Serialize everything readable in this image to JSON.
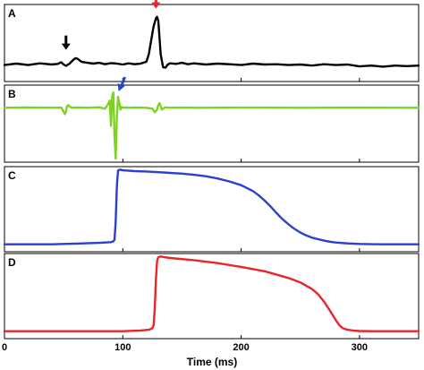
{
  "chart_data": {
    "type": "line",
    "x_axis": {
      "label": "Time (ms)",
      "range": [
        0,
        350
      ],
      "ticks": [
        0,
        100,
        200,
        300
      ],
      "tick_labels": [
        "0",
        "100",
        "200",
        "300"
      ]
    },
    "panels": [
      {
        "letter": "A",
        "color": "#000000",
        "y_range": [
          -0.6,
          2.2
        ],
        "series": {
          "x": [
            0,
            10,
            20,
            30,
            40,
            45,
            48,
            50,
            52,
            55,
            58,
            60,
            62,
            65,
            70,
            75,
            80,
            85,
            90,
            95,
            100,
            105,
            110,
            115,
            120,
            122,
            124,
            126,
            128,
            129,
            130,
            131,
            132,
            134,
            136,
            138,
            140,
            145,
            150,
            155,
            160,
            170,
            180,
            190,
            200,
            210,
            220,
            230,
            240,
            250,
            260,
            270,
            280,
            290,
            300,
            310,
            320,
            330,
            340,
            350
          ],
          "y": [
            0.0,
            0.05,
            0.0,
            0.06,
            0.02,
            0.04,
            0.1,
            0.02,
            -0.03,
            0.05,
            0.18,
            0.25,
            0.22,
            0.12,
            0.08,
            0.05,
            0.08,
            0.03,
            0.07,
            0.05,
            0.02,
            0.06,
            0.03,
            0.05,
            0.12,
            0.4,
            0.9,
            1.4,
            1.7,
            1.75,
            1.6,
            1.0,
            0.4,
            -0.08,
            -0.1,
            0.02,
            0.06,
            0.04,
            0.08,
            0.03,
            0.06,
            0.02,
            0.05,
            0.03,
            0.0,
            0.05,
            0.02,
            0.03,
            0.0,
            0.02,
            -0.02,
            0.03,
            0.0,
            0.02,
            -0.05,
            -0.02,
            -0.06,
            -0.02,
            -0.04,
            -0.02
          ]
        },
        "markers": [
          {
            "type": "arrow",
            "color": "#000000",
            "x": 52,
            "y": 0.55
          },
          {
            "type": "arrow",
            "color": "#e8262a",
            "x": 128,
            "y": 2.05
          }
        ]
      },
      {
        "letter": "B",
        "color": "#7dd321",
        "y_range": [
          -6,
          2.5
        ],
        "series": {
          "x": [
            0,
            20,
            40,
            48,
            50,
            51,
            52,
            53,
            54,
            55,
            56,
            58,
            60,
            70,
            80,
            85,
            88,
            89,
            90,
            91,
            92,
            93,
            94,
            95,
            96,
            97,
            98,
            99,
            100,
            102,
            105,
            110,
            120,
            125,
            127,
            129,
            130,
            131,
            132,
            133,
            134,
            136,
            140,
            150,
            160,
            200,
            250,
            300,
            350
          ],
          "y": [
            0.0,
            0.03,
            0.0,
            0.02,
            -0.4,
            -0.7,
            -0.4,
            0.2,
            0.3,
            0.15,
            0.05,
            0.0,
            0.03,
            0.0,
            0.05,
            -0.1,
            0.5,
            0.8,
            -2.0,
            1.3,
            1.7,
            -3.0,
            -5.6,
            -1.0,
            1.2,
            0.6,
            -0.2,
            0.1,
            0.0,
            0.03,
            0.0,
            0.02,
            0.0,
            -0.1,
            -0.5,
            -0.2,
            0.3,
            0.5,
            0.2,
            -0.2,
            -0.1,
            0.05,
            0.0,
            0.02,
            0.0,
            0.02,
            0.0,
            0.01,
            0.0
          ]
        },
        "markers": [
          {
            "type": "arrow",
            "color": "#2b45c9",
            "x": 98,
            "y": 2.0
          }
        ]
      },
      {
        "letter": "C",
        "color": "#2b3fd0",
        "y_range": [
          -0.1,
          1.05
        ],
        "series": {
          "x": [
            0,
            20,
            40,
            60,
            80,
            90,
            92,
            93,
            94,
            95,
            96,
            98,
            100,
            110,
            120,
            130,
            140,
            150,
            160,
            170,
            180,
            190,
            200,
            210,
            215,
            220,
            225,
            230,
            235,
            240,
            245,
            250,
            255,
            260,
            265,
            270,
            275,
            280,
            290,
            300,
            310,
            320,
            350
          ],
          "y": [
            0.0,
            0.0,
            0.0,
            0.01,
            0.02,
            0.03,
            0.04,
            0.06,
            0.3,
            0.8,
            1.0,
            1.01,
            1.0,
            0.99,
            0.985,
            0.975,
            0.965,
            0.955,
            0.94,
            0.92,
            0.89,
            0.85,
            0.8,
            0.72,
            0.66,
            0.59,
            0.51,
            0.42,
            0.34,
            0.27,
            0.21,
            0.16,
            0.12,
            0.09,
            0.07,
            0.05,
            0.035,
            0.025,
            0.012,
            0.005,
            0.002,
            0.0,
            0.0
          ]
        },
        "markers": []
      },
      {
        "letter": "D",
        "color": "#e8262a",
        "y_range": [
          -0.1,
          1.05
        ],
        "series": {
          "x": [
            0,
            40,
            80,
            100,
            115,
            122,
            125,
            126,
            127,
            128,
            129,
            130,
            132,
            135,
            140,
            160,
            180,
            200,
            220,
            240,
            250,
            260,
            265,
            270,
            275,
            280,
            283,
            286,
            290,
            295,
            300,
            310,
            320,
            350
          ],
          "y": [
            0.0,
            0.0,
            0.0,
            0.0,
            0.01,
            0.02,
            0.04,
            0.08,
            0.3,
            0.7,
            0.95,
            1.0,
            1.01,
            1.0,
            0.99,
            0.96,
            0.92,
            0.87,
            0.81,
            0.72,
            0.66,
            0.57,
            0.5,
            0.4,
            0.28,
            0.15,
            0.08,
            0.04,
            0.02,
            0.008,
            0.003,
            0.0,
            0.0,
            0.0
          ]
        },
        "markers": []
      }
    ]
  }
}
